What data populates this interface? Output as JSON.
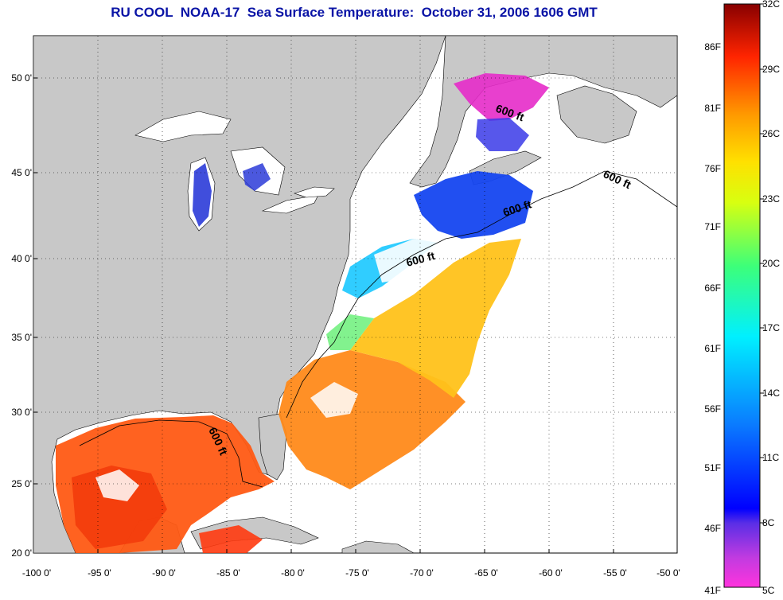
{
  "title": "RU COOL  NOAA-17  Sea Surface Temperature:  October 31, 2006 1606 GMT",
  "map": {
    "lon_ticks": [
      "-100 0'",
      "-95 0'",
      "-90 0'",
      "-85 0'",
      "-80 0'",
      "-75 0'",
      "-70 0'",
      "-65 0'",
      "-60 0'",
      "-55 0'",
      "-50 0'"
    ],
    "lat_ticks": [
      "50 0'",
      "45 0'",
      "40 0'",
      "35 0'",
      "30 0'",
      "25 0'",
      "20 0'"
    ],
    "land_color": "#c8c8c8",
    "isobath_labels": [
      "600 ft",
      "600 ft",
      "600 ft",
      "600 ft",
      "600 ft"
    ]
  },
  "colorbar": {
    "celsius": [
      "32C",
      "29C",
      "26C",
      "23C",
      "20C",
      "17C",
      "14C",
      "11C",
      "8C",
      "5C"
    ],
    "fahrenheit": [
      "86F",
      "81F",
      "76F",
      "71F",
      "66F",
      "61F",
      "56F",
      "51F",
      "46F",
      "41F"
    ]
  }
}
